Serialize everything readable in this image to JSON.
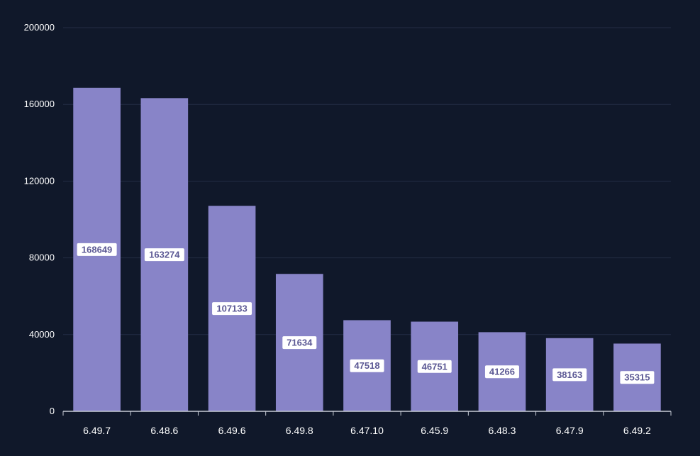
{
  "chart_data": {
    "type": "bar",
    "title": "",
    "xlabel": "",
    "ylabel": "",
    "categories": [
      "6.49.7",
      "6.48.6",
      "6.49.6",
      "6.49.8",
      "6.47.10",
      "6.45.9",
      "6.48.3",
      "6.47.9",
      "6.49.2"
    ],
    "values": [
      168649,
      163274,
      107133,
      71634,
      47518,
      46751,
      41266,
      38163,
      35315
    ],
    "ylim": [
      0,
      200000
    ],
    "yticks": [
      "0",
      "40000",
      "80000",
      "120000",
      "160000",
      "200000"
    ],
    "grid": true,
    "data_labels": true,
    "colors": {
      "background": "#10182a",
      "bar": "#8884c8",
      "grid": "#232c44",
      "axis": "#c8ccd6",
      "text": "#ffffff",
      "label_bg": "#ffffff",
      "label_text": "#5b5894"
    }
  }
}
